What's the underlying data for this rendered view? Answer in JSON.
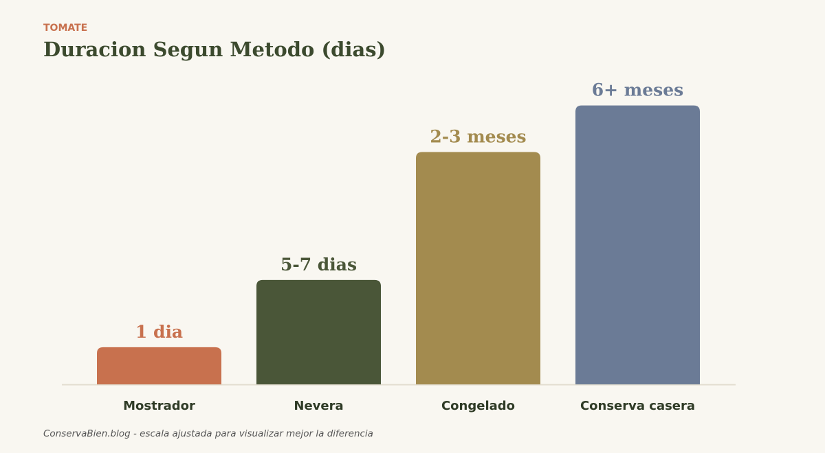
{
  "chart_data": {
    "type": "bar",
    "subtitle": "TOMATE",
    "title": "Duracion Segun Metodo (dias)",
    "categories": [
      "Mostrador",
      "Nevera",
      "Congelado",
      "Conserva casera"
    ],
    "values": [
      1,
      6,
      75,
      180
    ],
    "value_labels": [
      "1 dia",
      "5-7 dias",
      "2-3 meses",
      "6+ meses"
    ],
    "colors": [
      "#c8714e",
      "#4a5638",
      "#a38b4f",
      "#6b7b96"
    ],
    "log_scale": true,
    "footnote": "ConservaBien.blog - escala ajustada para visualizar mejor la diferencia"
  }
}
